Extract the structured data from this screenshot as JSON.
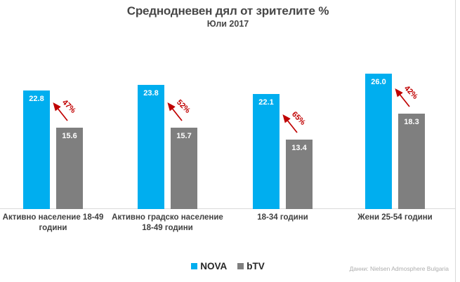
{
  "chart_data": {
    "type": "bar",
    "title": "Среднодневен дял от зрителите %",
    "subtitle": "Юли 2017",
    "categories": [
      "Активно население 18-49 години",
      "Активно градско население 18-49 години",
      "18-34 години",
      "Жени 25-54 години"
    ],
    "series": [
      {
        "name": "NOVA",
        "color": "#00AEEF",
        "values": [
          22.8,
          23.8,
          22.1,
          26.0
        ]
      },
      {
        "name": "bTV",
        "color": "#7F7F7F",
        "values": [
          15.6,
          15.7,
          13.4,
          18.3
        ]
      }
    ],
    "annotations": {
      "color": "#C00000",
      "labels": [
        "47%",
        "52%",
        "65%",
        "42%"
      ],
      "meaning": "NOVA lead over bTV, upward arrow"
    },
    "ylim": [
      0,
      28
    ],
    "grid": false,
    "legend_position": "bottom",
    "xlabel": "",
    "ylabel": "",
    "source": "Данни: Nielsen Admosphere Bulgaria"
  }
}
